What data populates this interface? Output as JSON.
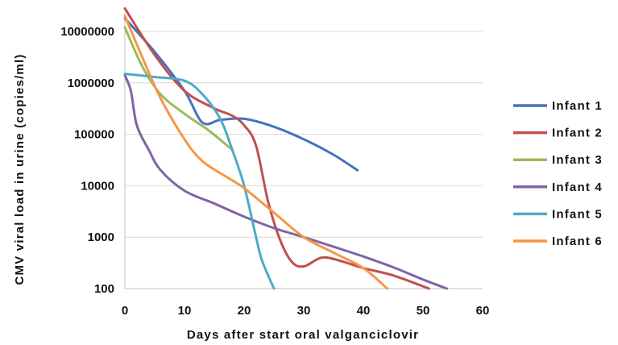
{
  "chart_data": {
    "type": "line",
    "xlabel": "Days after start oral valganciclovir",
    "ylabel": "CMV viral load in urine (copies/ml)",
    "xlim": [
      0,
      60
    ],
    "ylim": [
      100,
      20000000
    ],
    "y_scale": "log",
    "x_ticks": [
      0,
      10,
      20,
      30,
      40,
      50,
      60
    ],
    "y_ticks": [
      100,
      1000,
      10000,
      100000,
      1000000,
      10000000
    ],
    "y_tick_labels": [
      "100",
      "1000",
      "10000",
      "100000",
      "1000000",
      "10000000"
    ],
    "grid": "horizontal",
    "legend_position": "right",
    "series": [
      {
        "name": "Infant 1",
        "color": "#4472C4",
        "points": [
          [
            0,
            18000000
          ],
          [
            5,
            4000000
          ],
          [
            10,
            700000
          ],
          [
            13,
            170000
          ],
          [
            16,
            190000
          ],
          [
            20,
            200000
          ],
          [
            25,
            140000
          ],
          [
            30,
            80000
          ],
          [
            35,
            40000
          ],
          [
            39,
            20000
          ]
        ]
      },
      {
        "name": "Infant 2",
        "color": "#C0504D",
        "points": [
          [
            0,
            28000000
          ],
          [
            5,
            3500000
          ],
          [
            10,
            700000
          ],
          [
            15,
            320000
          ],
          [
            18,
            230000
          ],
          [
            20,
            150000
          ],
          [
            22,
            60000
          ],
          [
            24,
            5000
          ],
          [
            26,
            900
          ],
          [
            28,
            330
          ],
          [
            30,
            270
          ],
          [
            33,
            400
          ],
          [
            36,
            350
          ],
          [
            40,
            250
          ],
          [
            45,
            180
          ],
          [
            51,
            100
          ]
        ]
      },
      {
        "name": "Infant 3",
        "color": "#9BBB59",
        "points": [
          [
            0,
            12000000
          ],
          [
            3,
            2000000
          ],
          [
            6,
            600000
          ],
          [
            10,
            250000
          ],
          [
            14,
            120000
          ],
          [
            18,
            50000
          ]
        ]
      },
      {
        "name": "Infant 4",
        "color": "#8064A2",
        "points": [
          [
            0,
            1400000
          ],
          [
            1,
            700000
          ],
          [
            2,
            150000
          ],
          [
            4,
            50000
          ],
          [
            6,
            20000
          ],
          [
            10,
            8000
          ],
          [
            15,
            4500
          ],
          [
            20,
            2500
          ],
          [
            25,
            1500
          ],
          [
            30,
            1000
          ],
          [
            35,
            650
          ],
          [
            40,
            420
          ],
          [
            45,
            260
          ],
          [
            50,
            150
          ],
          [
            54,
            100
          ]
        ]
      },
      {
        "name": "Infant 5",
        "color": "#4BACC6",
        "points": [
          [
            0,
            1500000
          ],
          [
            5,
            1300000
          ],
          [
            10,
            1100000
          ],
          [
            13,
            600000
          ],
          [
            16,
            200000
          ],
          [
            18,
            50000
          ],
          [
            20,
            10000
          ],
          [
            22,
            1000
          ],
          [
            23,
            350
          ],
          [
            25,
            100
          ]
        ]
      },
      {
        "name": "Infant 6",
        "color": "#F79646",
        "points": [
          [
            0,
            20000000
          ],
          [
            3,
            3000000
          ],
          [
            6,
            500000
          ],
          [
            10,
            80000
          ],
          [
            13,
            30000
          ],
          [
            17,
            15000
          ],
          [
            20,
            9000
          ],
          [
            25,
            3000
          ],
          [
            30,
            1000
          ],
          [
            35,
            500
          ],
          [
            40,
            250
          ],
          [
            44,
            100
          ]
        ]
      }
    ]
  }
}
